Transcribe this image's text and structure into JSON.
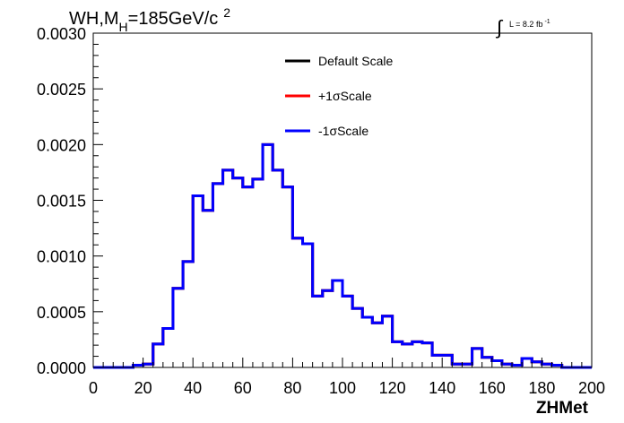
{
  "chart_data": {
    "type": "line",
    "title": {
      "base": "WH,M",
      "subscript": "H",
      "after": "=185GeV/c",
      "superscript": "2"
    },
    "luminosity": {
      "symbol": "∫",
      "text": "L = 8.2 fb",
      "superscript": "-1"
    },
    "xlabel": "ZHMet",
    "ylabel": "",
    "xlim": [
      0,
      200
    ],
    "ylim": [
      0,
      0.003
    ],
    "x_ticks": [
      {
        "value": 0,
        "label": "0"
      },
      {
        "value": 20,
        "label": "20"
      },
      {
        "value": 40,
        "label": "40"
      },
      {
        "value": 60,
        "label": "60"
      },
      {
        "value": 80,
        "label": "80"
      },
      {
        "value": 100,
        "label": "100"
      },
      {
        "value": 120,
        "label": "120"
      },
      {
        "value": 140,
        "label": "140"
      },
      {
        "value": 160,
        "label": "160"
      },
      {
        "value": 180,
        "label": "180"
      },
      {
        "value": 200,
        "label": "200"
      }
    ],
    "y_ticks": [
      {
        "value": 0,
        "label": "0.0000"
      },
      {
        "value": 0.0005,
        "label": "0.0005"
      },
      {
        "value": 0.001,
        "label": "0.0010"
      },
      {
        "value": 0.0015,
        "label": "0.0015"
      },
      {
        "value": 0.002,
        "label": "0.0020"
      },
      {
        "value": 0.0025,
        "label": "0.0025"
      },
      {
        "value": 0.003,
        "label": "0.0030"
      }
    ],
    "grid": false,
    "legend_position": "top-center",
    "bin_edges": [
      0,
      4,
      8,
      12,
      16,
      20,
      24,
      28,
      32,
      36,
      40,
      44,
      48,
      52,
      56,
      60,
      64,
      68,
      72,
      76,
      80,
      84,
      88,
      92,
      96,
      100,
      104,
      108,
      112,
      116,
      120,
      124,
      128,
      132,
      136,
      140,
      144,
      148,
      152,
      156,
      160,
      164,
      168,
      172,
      176,
      180,
      184,
      188,
      192,
      196,
      200
    ],
    "series": [
      {
        "name": "Default Scale",
        "color": "#000000",
        "values": [
          0,
          0,
          0,
          0,
          2e-05,
          3e-05,
          0.00021,
          0.00035,
          0.00071,
          0.00095,
          0.00154,
          0.00141,
          0.00165,
          0.00177,
          0.0017,
          0.00162,
          0.00169,
          0.002,
          0.00177,
          0.00162,
          0.00116,
          0.00111,
          0.00064,
          0.00069,
          0.00078,
          0.00064,
          0.00053,
          0.00045,
          0.0004,
          0.00046,
          0.00023,
          0.00021,
          0.00023,
          0.00022,
          0.00011,
          0.00011,
          3e-05,
          3e-05,
          0.00017,
          9e-05,
          6e-05,
          3e-05,
          2e-05,
          8e-05,
          5e-05,
          3e-05,
          2e-05,
          0,
          0,
          0
        ]
      },
      {
        "name": "+1σScale",
        "color": "#ff0000",
        "values": [
          0,
          0,
          0,
          0,
          2e-05,
          3e-05,
          0.00021,
          0.00035,
          0.00071,
          0.00095,
          0.00154,
          0.00141,
          0.00165,
          0.00177,
          0.0017,
          0.00162,
          0.00169,
          0.002,
          0.00177,
          0.00162,
          0.00116,
          0.00111,
          0.00064,
          0.00069,
          0.00078,
          0.00064,
          0.00053,
          0.00045,
          0.0004,
          0.00046,
          0.00023,
          0.00021,
          0.00023,
          0.00022,
          0.00011,
          0.00011,
          3e-05,
          3e-05,
          0.00017,
          9e-05,
          6e-05,
          3e-05,
          2e-05,
          8e-05,
          5e-05,
          3e-05,
          2e-05,
          0,
          0,
          0
        ]
      },
      {
        "name": "-1σScale",
        "color": "#0000ff",
        "values": [
          0,
          0,
          0,
          0,
          2e-05,
          3e-05,
          0.00021,
          0.00035,
          0.00071,
          0.00095,
          0.00154,
          0.00141,
          0.00165,
          0.00177,
          0.0017,
          0.00162,
          0.00169,
          0.002,
          0.00177,
          0.00162,
          0.00116,
          0.00111,
          0.00064,
          0.00069,
          0.00078,
          0.00064,
          0.00053,
          0.00045,
          0.0004,
          0.00046,
          0.00023,
          0.00021,
          0.00023,
          0.00022,
          0.00011,
          0.00011,
          3e-05,
          3e-05,
          0.00017,
          9e-05,
          6e-05,
          3e-05,
          2e-05,
          8e-05,
          5e-05,
          3e-05,
          2e-05,
          0,
          0,
          0
        ]
      }
    ]
  }
}
